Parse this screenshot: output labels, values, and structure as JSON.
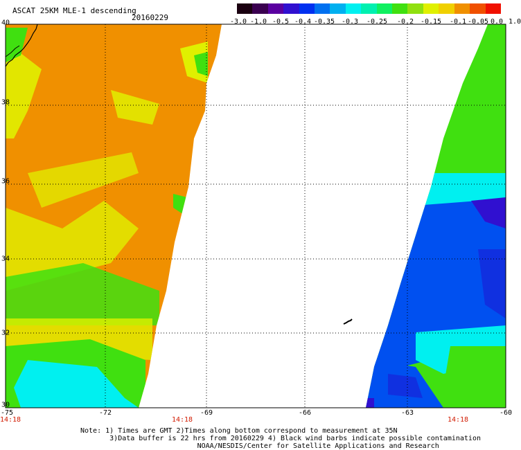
{
  "header": {
    "title": "ASCAT 25KM MLE-1 descending",
    "date": "20160229"
  },
  "colorbar": {
    "tick_labels": [
      "-3.0",
      "-1.0",
      "-0.5",
      "-0.4",
      "-0.35",
      "-0.3",
      "-0.25",
      "-0.2",
      "-0.15",
      "-0.1",
      "-0.05",
      "0.0",
      "1.0"
    ],
    "gradient": [
      "#1a0010",
      "#3a0050",
      "#5a00a0",
      "#3010d0",
      "#0030f0",
      "#0070f0",
      "#00b0f0",
      "#00f0f0",
      "#00f0b0",
      "#10f060",
      "#40e010",
      "#90e010",
      "#e0f000",
      "#f0d000",
      "#f09000",
      "#f05000",
      "#f01000"
    ]
  },
  "map": {
    "lat_labels": [
      "40",
      "38",
      "36",
      "34",
      "32",
      "30"
    ],
    "lon_labels": [
      "-75",
      "-72",
      "-69",
      "-66",
      "-63",
      "-60"
    ],
    "time_labels": [
      "14:18",
      "14:18",
      "14:18"
    ],
    "colors": {
      "orange": "#f09000",
      "yellow": "#e0f000",
      "green": "#40e010",
      "cyan": "#00f0f0",
      "blue": "#0050f0",
      "deep_blue": "#1030e0",
      "violet": "#3010d0",
      "coast": "#000000",
      "time_text": "#d11a00"
    }
  },
  "notes": {
    "line1": "Note: 1) Times are GMT 2)Times along bottom correspond to measurement at 35N",
    "line2": "3)Data buffer is 22 hrs from 20160229 4) Black wind barbs indicate possible contamination",
    "line3": "NOAA/NESDIS/Center for Satellite Applications and Research"
  }
}
